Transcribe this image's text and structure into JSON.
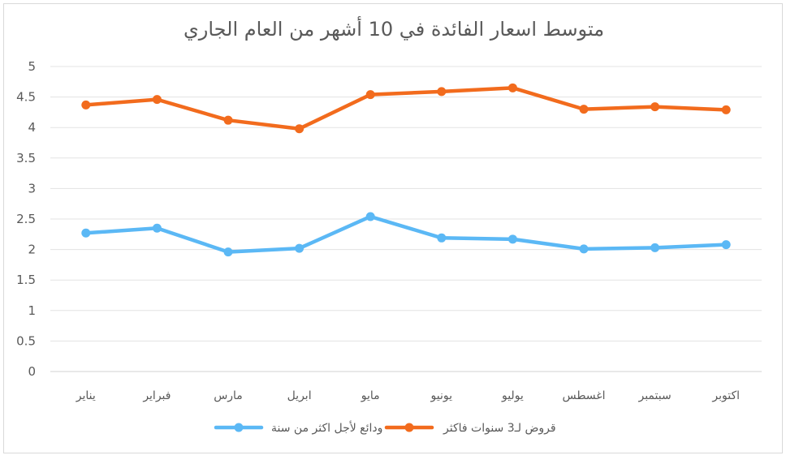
{
  "chart_data": {
    "type": "line",
    "title": "متوسط اسعار الفائدة في 10 أشهر من العام الجاري",
    "categories": [
      "يناير",
      "فبراير",
      "مارس",
      "ابريل",
      "مايو",
      "يونيو",
      "يوليو",
      "اغسطس",
      "سبتمبر",
      "اكتوبر"
    ],
    "ylim": [
      0,
      5
    ],
    "yticks": [
      "0",
      "0.5",
      "1",
      "1.5",
      "2",
      "2.5",
      "3",
      "3.5",
      "4",
      "4.5",
      "5"
    ],
    "grid": true,
    "legend_position": "bottom",
    "series": [
      {
        "name": "ودائع لأجل اكثر من سنة",
        "color": "#5bb8f5",
        "values": [
          2.27,
          2.35,
          1.96,
          2.02,
          2.54,
          2.19,
          2.17,
          2.01,
          2.03,
          2.08
        ]
      },
      {
        "name": "قروض لـ3 سنوات فاكثر",
        "color": "#f26b1d",
        "values": [
          4.37,
          4.46,
          4.12,
          3.98,
          4.54,
          4.59,
          4.65,
          4.3,
          4.34,
          4.29
        ]
      }
    ]
  }
}
